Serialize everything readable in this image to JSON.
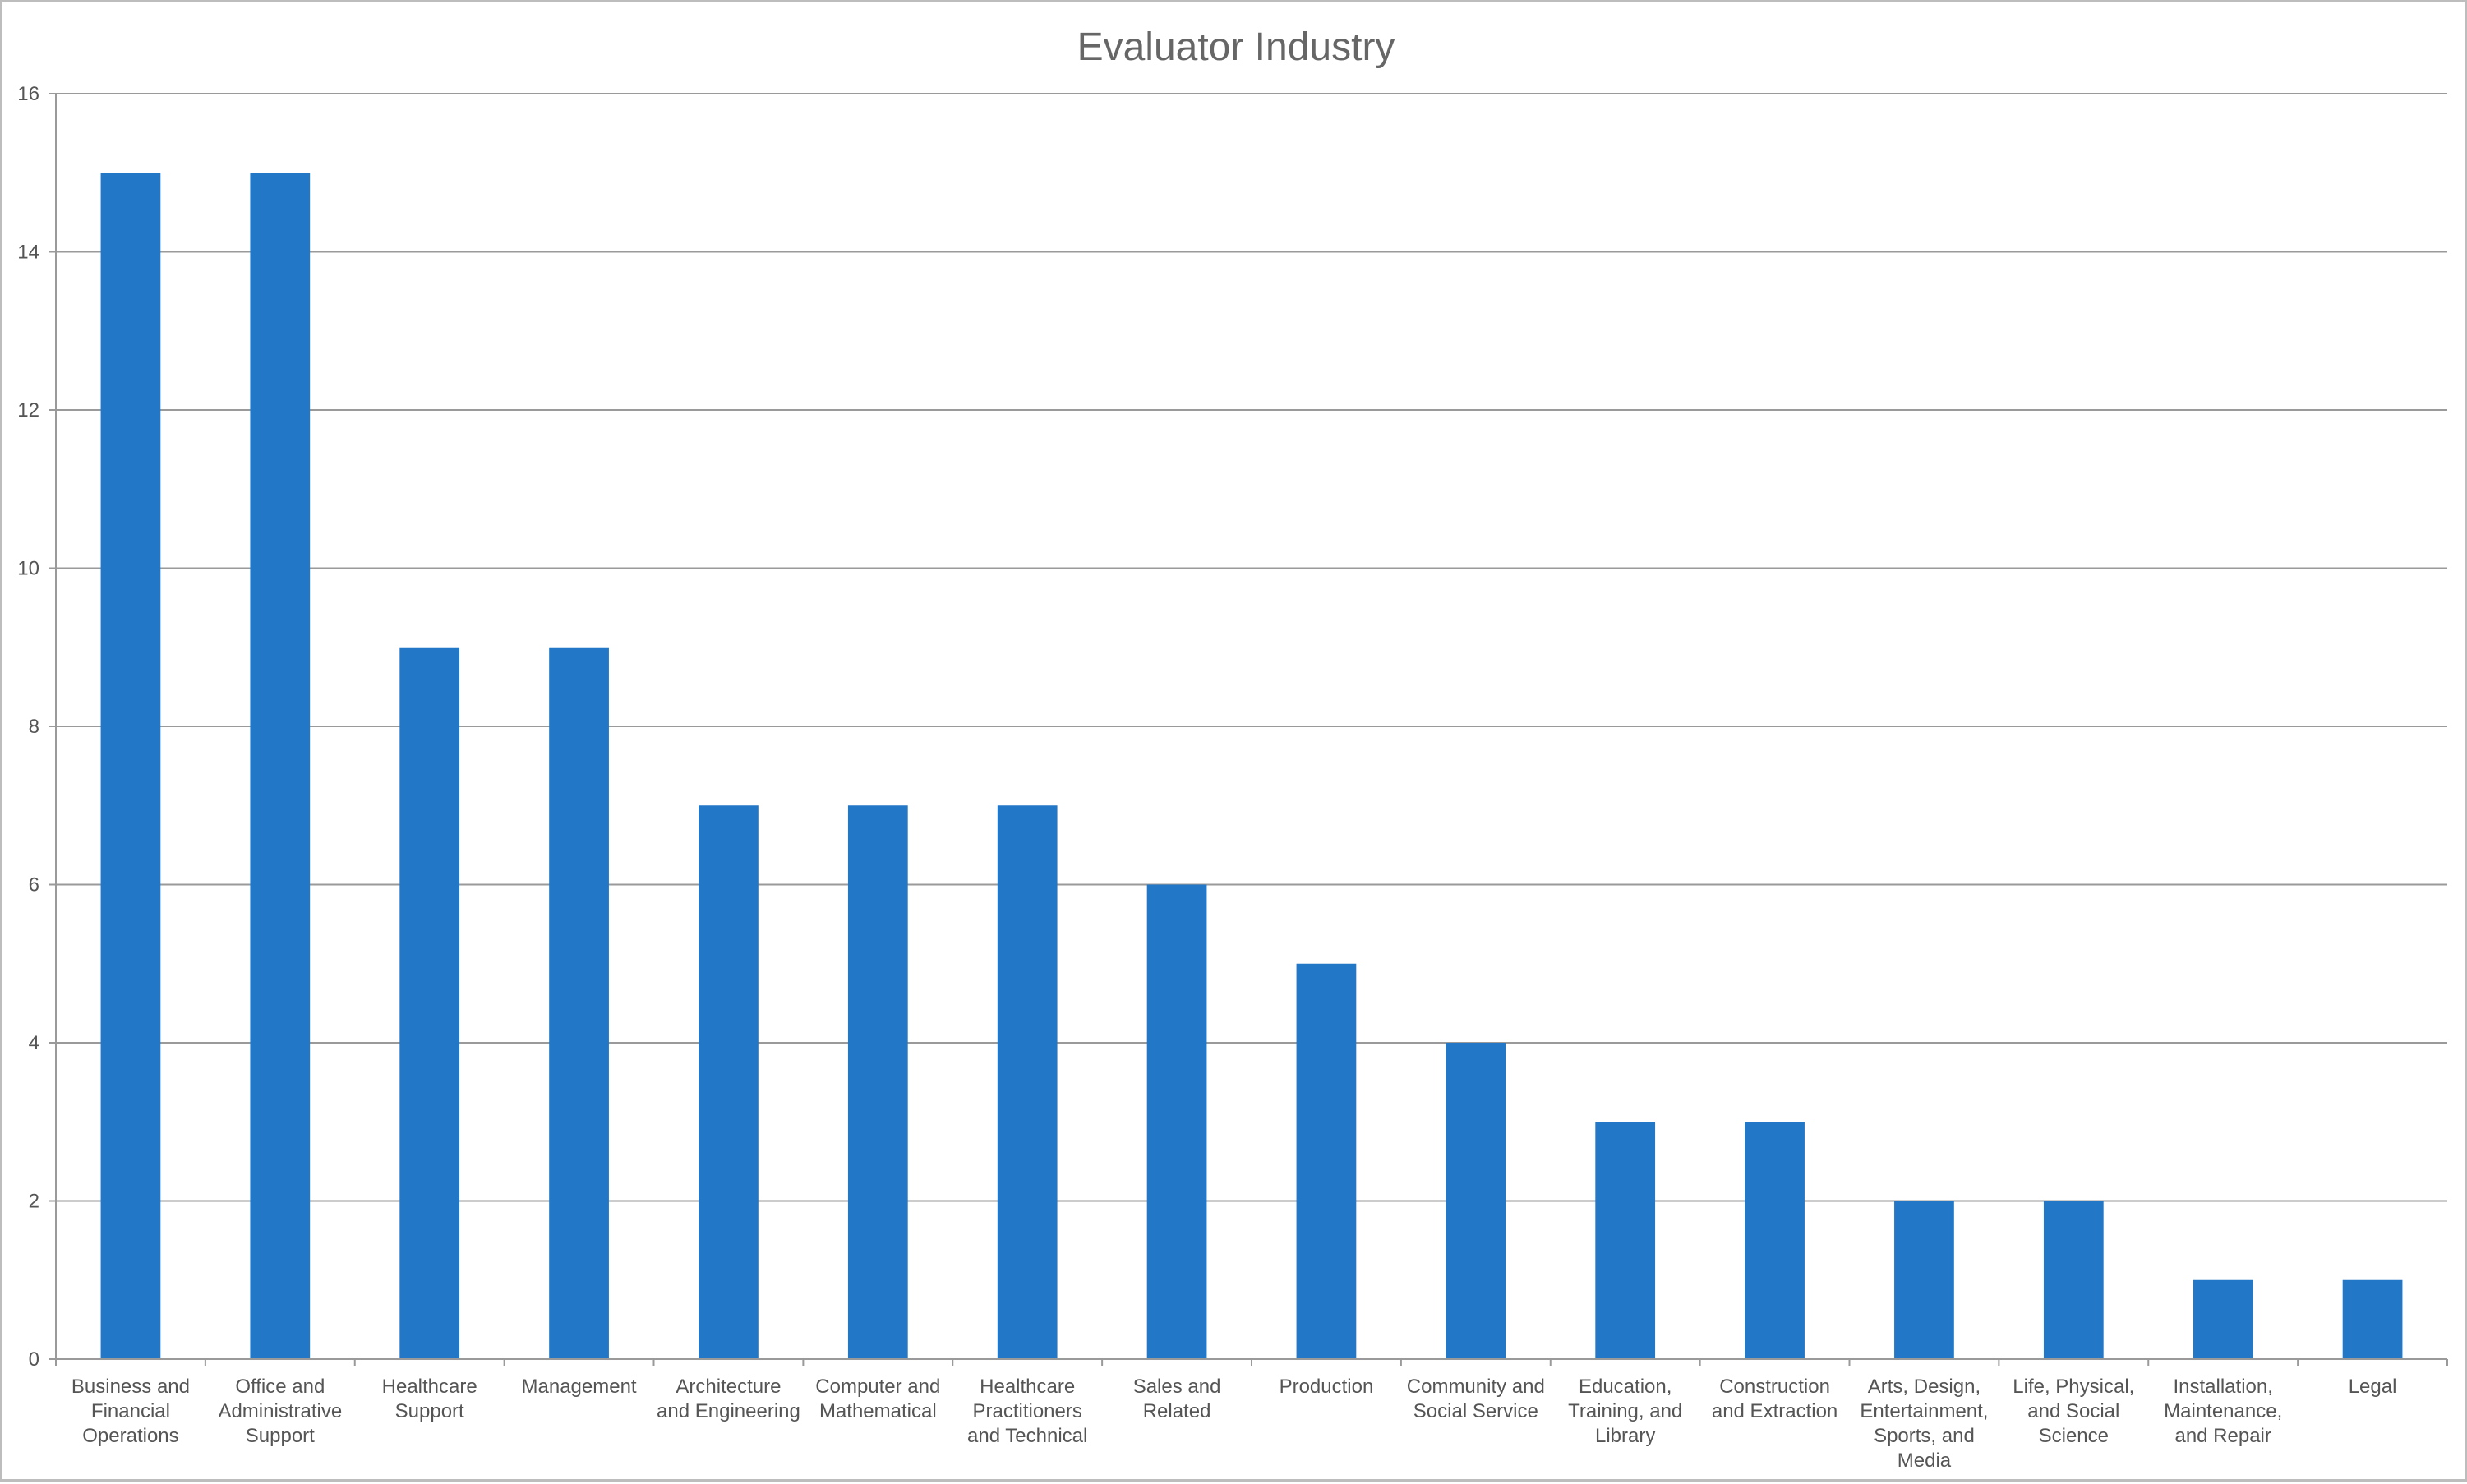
{
  "chart_data": {
    "type": "bar",
    "title": "Evaluator Industry",
    "xlabel": "",
    "ylabel": "",
    "ylim": [
      0,
      16
    ],
    "yticks": [
      0,
      2,
      4,
      6,
      8,
      10,
      12,
      14,
      16
    ],
    "grid": true,
    "legend": "none",
    "bar_color": "#2277c6",
    "categories": [
      [
        "Business and",
        "Financial",
        "Operations"
      ],
      [
        "Office and",
        "Administrative",
        "Support"
      ],
      [
        "Healthcare",
        "Support"
      ],
      [
        "Management"
      ],
      [
        "Architecture",
        "and Engineering"
      ],
      [
        "Computer and",
        "Mathematical"
      ],
      [
        "Healthcare",
        "Practitioners",
        "and Technical"
      ],
      [
        "Sales and",
        "Related"
      ],
      [
        "Production"
      ],
      [
        "Community and",
        "Social Service"
      ],
      [
        "Education,",
        "Training, and",
        "Library"
      ],
      [
        "Construction",
        "and Extraction"
      ],
      [
        "Arts, Design,",
        "Entertainment,",
        "Sports, and",
        "Media"
      ],
      [
        "Life, Physical,",
        "and Social",
        "Science"
      ],
      [
        "Installation,",
        "Maintenance,",
        "and Repair"
      ],
      [
        "Legal"
      ]
    ],
    "values": [
      15,
      15,
      9,
      9,
      7,
      7,
      7,
      6,
      5,
      4,
      3,
      3,
      2,
      2,
      1,
      1
    ]
  }
}
